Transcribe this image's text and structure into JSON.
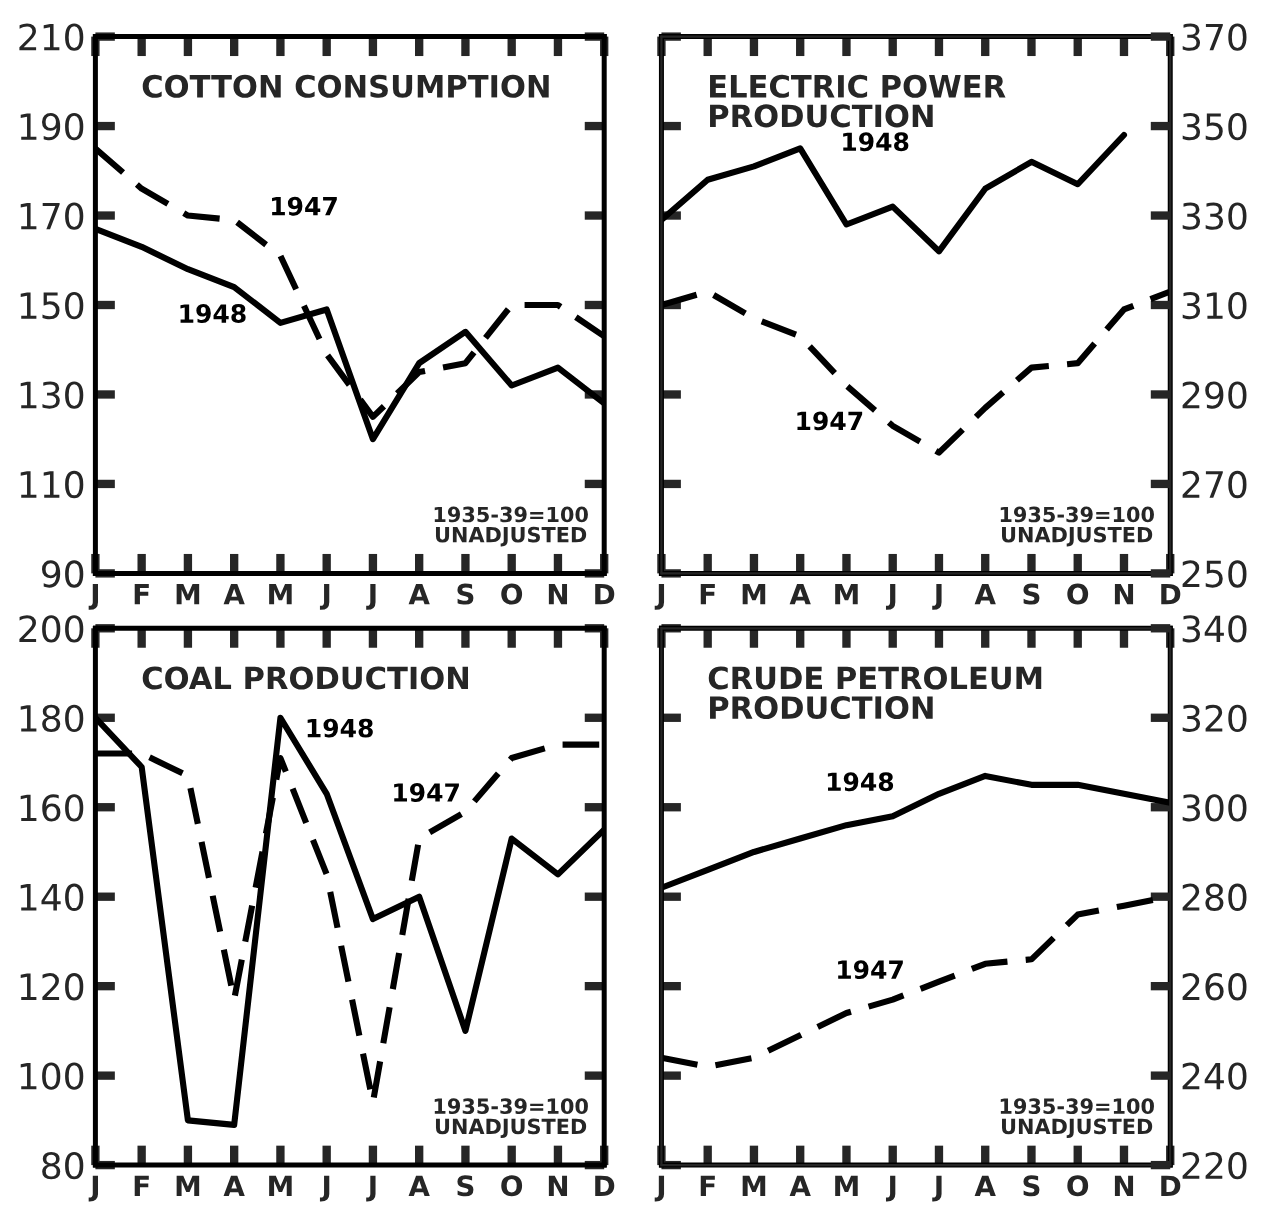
{
  "chart_data": [
    {
      "type": "line",
      "title": "COTTON CONSUMPTION",
      "categories": [
        "J",
        "F",
        "M",
        "A",
        "M",
        "J",
        "J",
        "A",
        "S",
        "O",
        "N",
        "D"
      ],
      "ylim": [
        90,
        210
      ],
      "yticks": [
        90,
        110,
        130,
        150,
        170,
        190,
        210
      ],
      "series": [
        {
          "name": "1948",
          "color": "#000000",
          "line_style": "solid",
          "values": [
            167,
            163,
            158,
            154,
            146,
            149,
            120,
            137,
            144,
            132,
            136,
            128
          ]
        },
        {
          "name": "1947",
          "color": "#000000",
          "line_style": "dashed",
          "values": [
            185,
            176,
            170,
            169,
            161,
            139,
            125,
            135,
            137,
            150,
            150,
            143
          ]
        }
      ],
      "annotations": [
        "1935-39=100\nUNADJUSTED"
      ]
    },
    {
      "type": "line",
      "title": "ELECTRIC POWER\nPRODUCTION",
      "categories": [
        "J",
        "F",
        "M",
        "A",
        "M",
        "J",
        "J",
        "A",
        "S",
        "O",
        "N",
        "D"
      ],
      "y2lim": [
        250,
        370
      ],
      "y2ticks": [
        250,
        270,
        290,
        310,
        330,
        350,
        370
      ],
      "series": [
        {
          "name": "1948",
          "color": "#000000",
          "line_style": "solid",
          "axis": "y2",
          "values": [
            329,
            338,
            341,
            345,
            328,
            332,
            322,
            336,
            342,
            337,
            348,
            null
          ]
        },
        {
          "name": "1947",
          "color": "#000000",
          "line_style": "dashed",
          "axis": "y2",
          "values": [
            310,
            313,
            307,
            303,
            292,
            283,
            277,
            287,
            296,
            297,
            309,
            313
          ]
        }
      ],
      "annotations": [
        "1935-39=100\nUNADJUSTED"
      ]
    },
    {
      "type": "line",
      "title": "COAL PRODUCTION",
      "categories": [
        "J",
        "F",
        "M",
        "A",
        "M",
        "J",
        "J",
        "A",
        "S",
        "O",
        "N",
        "D"
      ],
      "ylim": [
        80,
        200
      ],
      "yticks": [
        80,
        100,
        120,
        140,
        160,
        180,
        200
      ],
      "series": [
        {
          "name": "1948",
          "color": "#000000",
          "line_style": "solid",
          "values": [
            180,
            169,
            90,
            89,
            180,
            163,
            135,
            140,
            110,
            153,
            145,
            155
          ]
        },
        {
          "name": "1947",
          "color": "#000000",
          "line_style": "dashed",
          "values": [
            172,
            172,
            167,
            117,
            171,
            145,
            94,
            153,
            159,
            171,
            174,
            174
          ]
        }
      ],
      "annotations": [
        "1935-39=100\nUNADJUSTED"
      ]
    },
    {
      "type": "line",
      "title": "CRUDE PETROLEUM\nPRODUCTION",
      "categories": [
        "J",
        "F",
        "M",
        "A",
        "M",
        "J",
        "J",
        "A",
        "S",
        "O",
        "N",
        "D"
      ],
      "y2lim": [
        220,
        340
      ],
      "y2ticks": [
        220,
        240,
        260,
        280,
        300,
        320,
        340
      ],
      "series": [
        {
          "name": "1948",
          "color": "#000000",
          "line_style": "solid",
          "axis": "y2",
          "values": [
            282,
            286,
            290,
            293,
            296,
            298,
            303,
            307,
            305,
            305,
            303,
            301
          ]
        },
        {
          "name": "1947",
          "color": "#000000",
          "line_style": "dashed",
          "axis": "y2",
          "values": [
            244,
            242,
            244,
            249,
            254,
            257,
            261,
            265,
            266,
            276,
            278,
            280
          ]
        }
      ],
      "annotations": [
        "1935-39=100\nUNADJUSTED"
      ]
    }
  ]
}
